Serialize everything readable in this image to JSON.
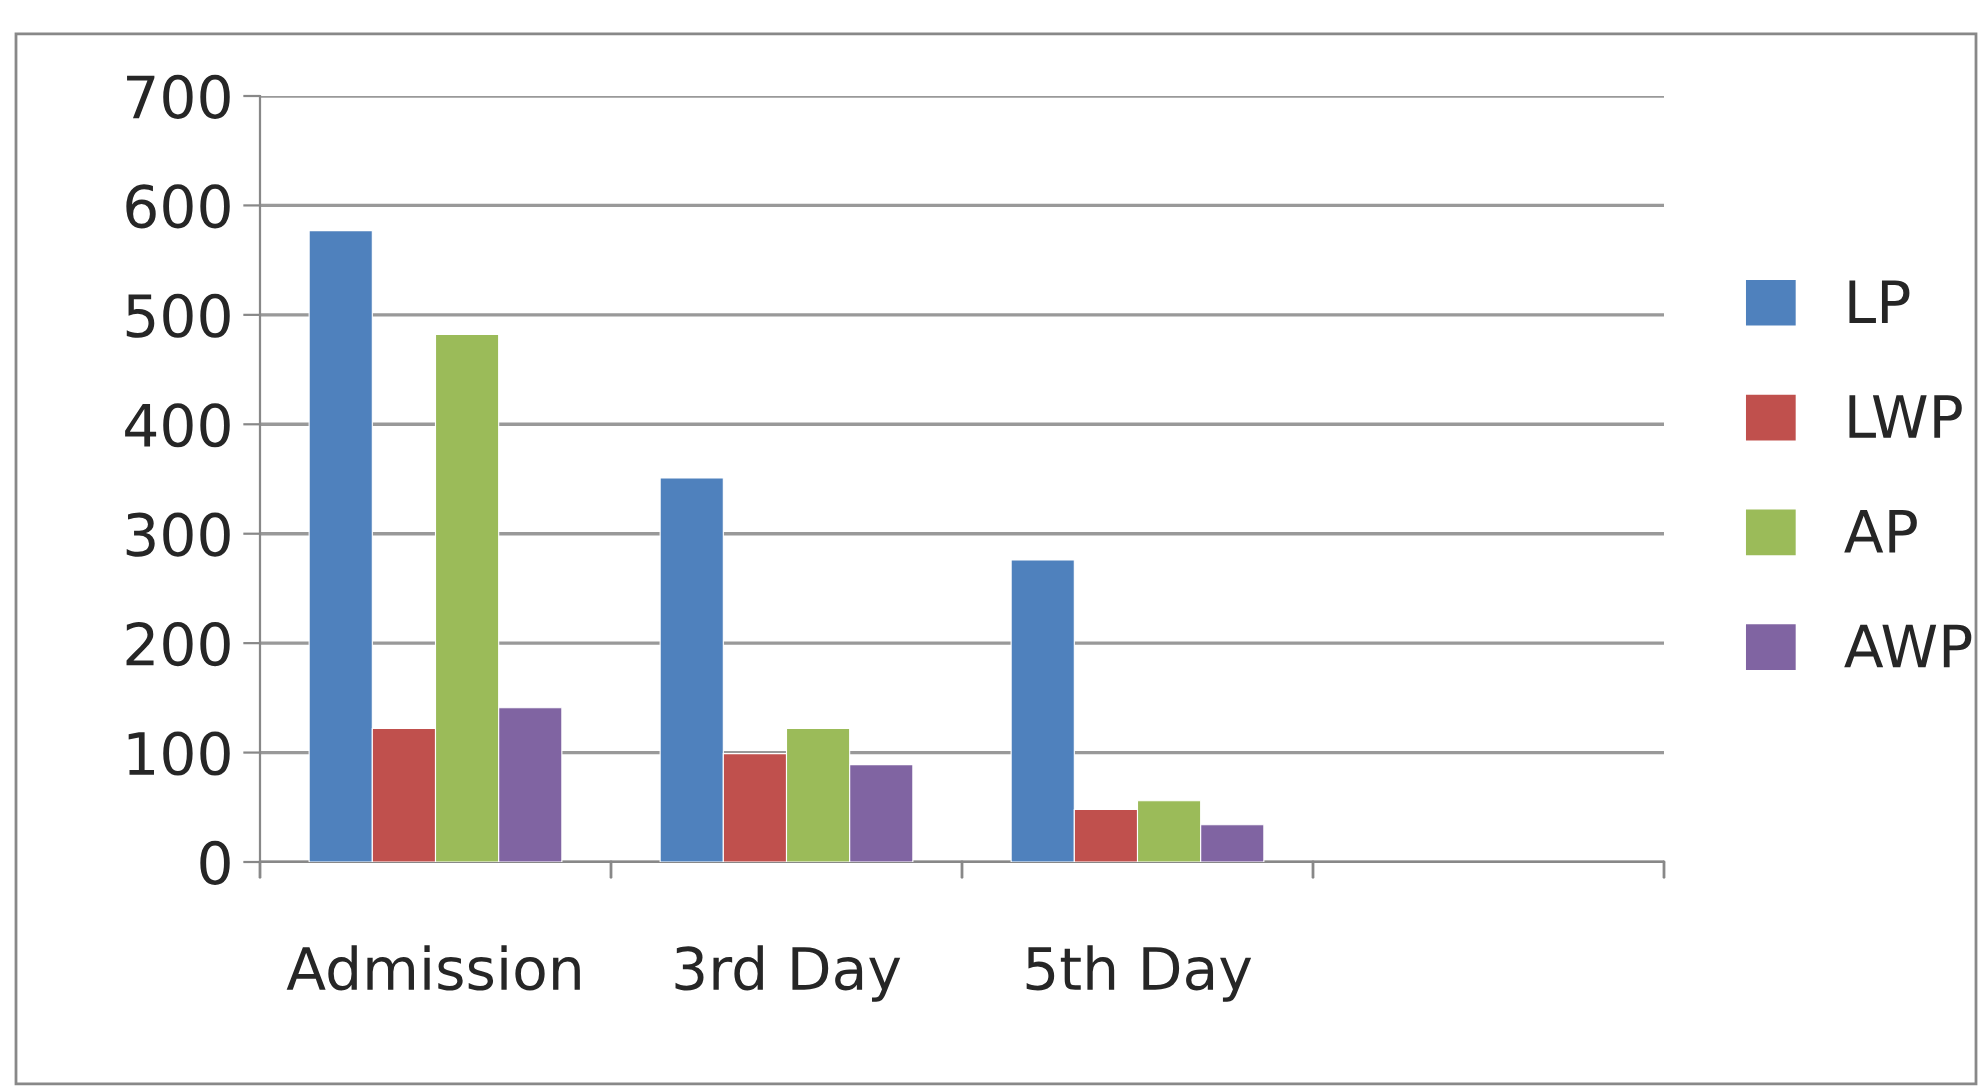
{
  "chart_data": {
    "type": "bar",
    "categories": [
      "Admission",
      "3rd Day",
      "5th Day",
      null
    ],
    "series": [
      {
        "name": "LP",
        "color": "#4f81bd",
        "values": [
          577,
          351,
          276,
          null
        ]
      },
      {
        "name": "LWP",
        "color": "#c0504d",
        "values": [
          122,
          99,
          48,
          null
        ]
      },
      {
        "name": "AP",
        "color": "#9bbb59",
        "values": [
          482,
          122,
          56,
          null
        ]
      },
      {
        "name": "AWP",
        "color": "#8064a2",
        "values": [
          141,
          89,
          34,
          null
        ]
      }
    ],
    "ylim": [
      0,
      700
    ],
    "yticks": [
      0,
      100,
      200,
      300,
      400,
      500,
      600,
      700
    ],
    "grid": "y",
    "legend": "right"
  }
}
